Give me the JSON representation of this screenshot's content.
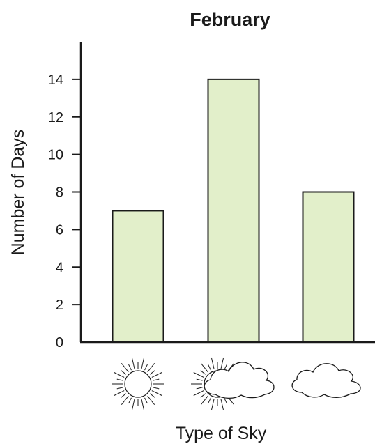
{
  "chart_data": {
    "type": "bar",
    "title": "February",
    "xlabel": "Type of Sky",
    "ylabel": "Number of Days",
    "categories": [
      "sunny",
      "partly cloudy",
      "cloudy"
    ],
    "category_icons": [
      "sun-icon",
      "sun-behind-cloud-icon",
      "cloud-icon"
    ],
    "values": [
      7,
      14,
      8
    ],
    "ylim": [
      0,
      16
    ],
    "yticks": [
      0,
      2,
      4,
      6,
      8,
      10,
      12,
      14
    ],
    "grid": false,
    "legend": "none",
    "bar_color": "#e2efca",
    "stroke_color": "#1a1a1a"
  }
}
